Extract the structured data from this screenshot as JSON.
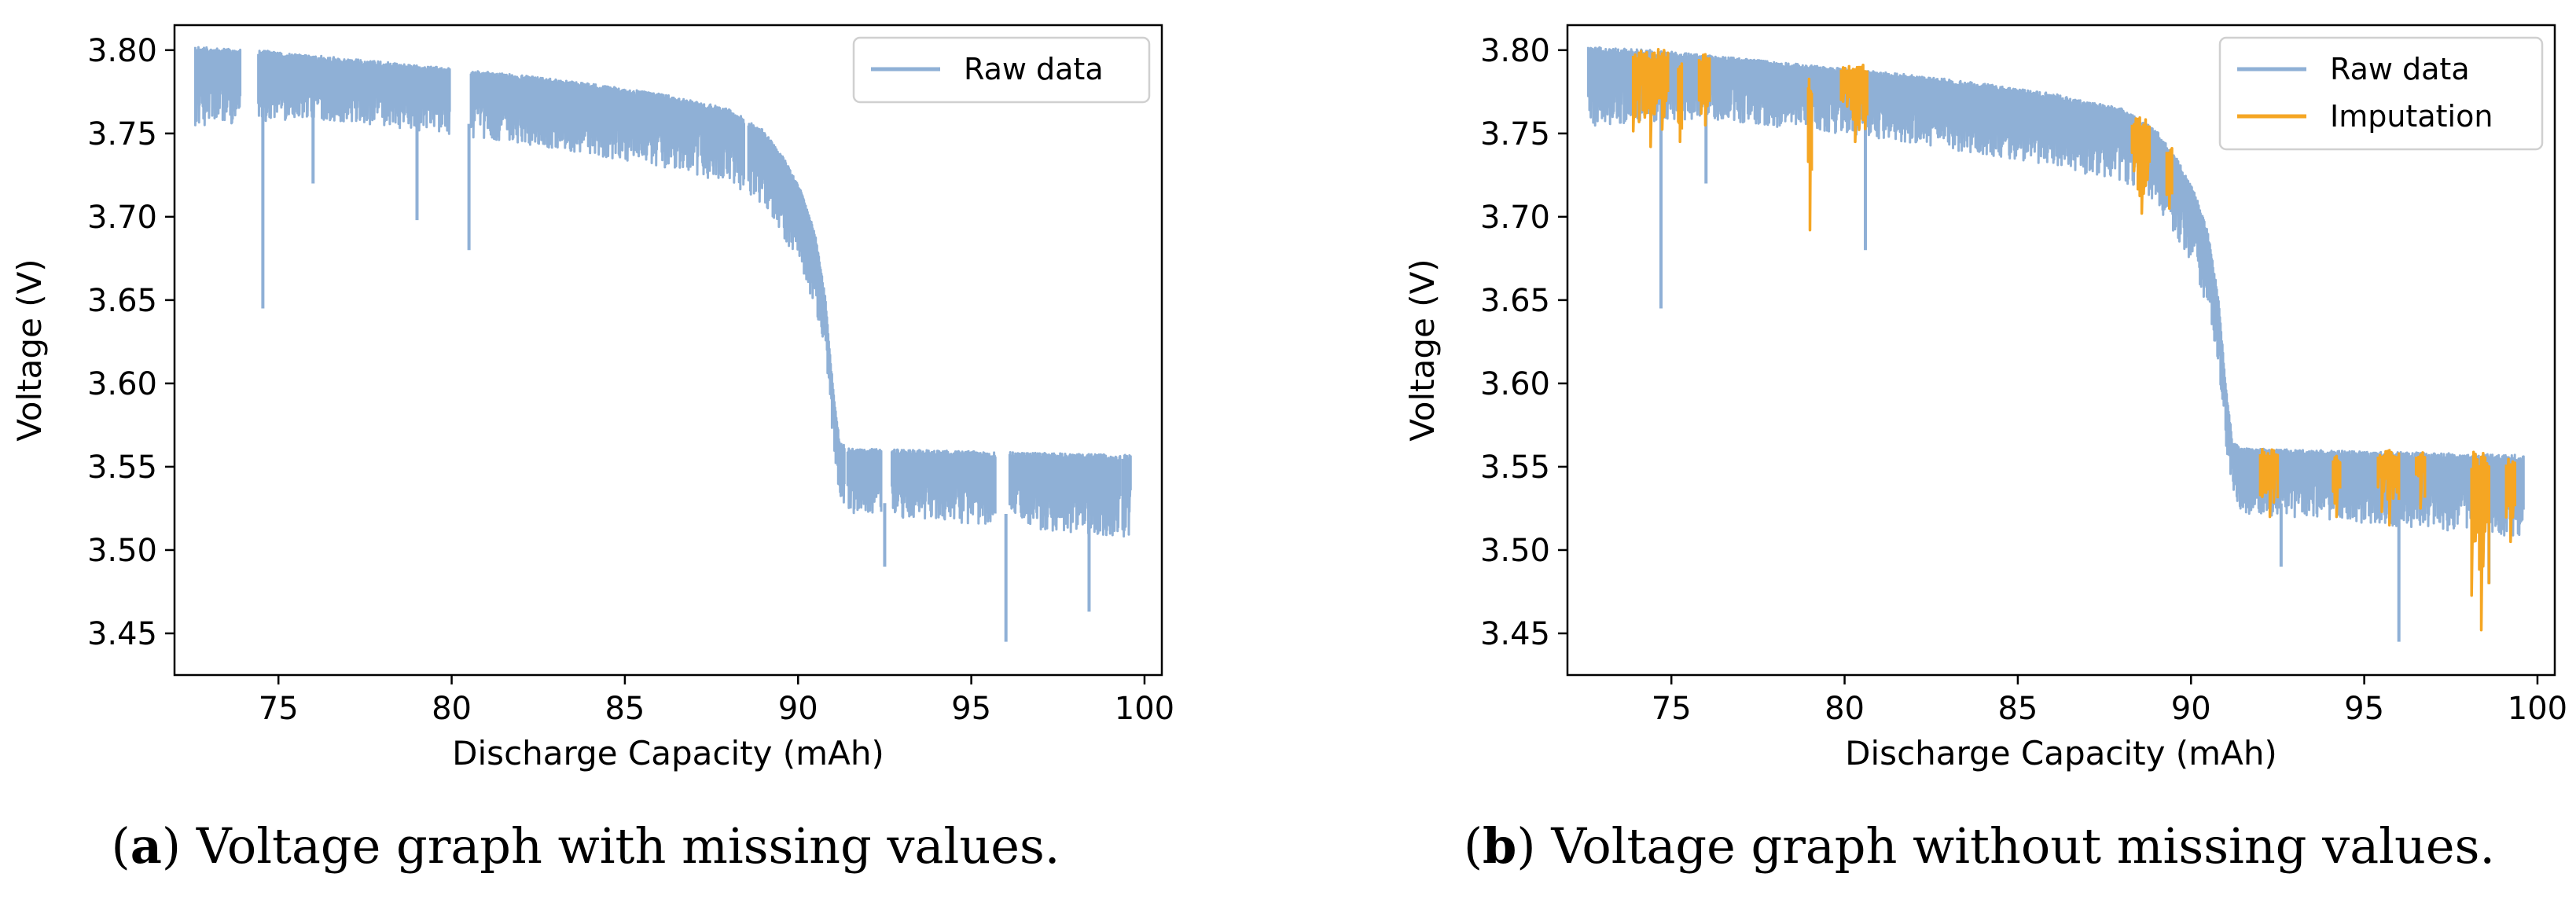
{
  "chart_data": [
    {
      "type": "line",
      "xlabel": "Discharge Capacity (mAh)",
      "ylabel": "Voltage (V)",
      "xlim": [
        72.0,
        100.5
      ],
      "ylim": [
        3.425,
        3.815
      ],
      "xticks": [
        75,
        80,
        85,
        90,
        95,
        100
      ],
      "yticks": [
        3.45,
        3.5,
        3.55,
        3.6,
        3.65,
        3.7,
        3.75,
        3.8
      ],
      "xtick_labels": [
        "75",
        "80",
        "85",
        "90",
        "95",
        "100"
      ],
      "ytick_labels": [
        "3.45",
        "3.50",
        "3.55",
        "3.60",
        "3.65",
        "3.70",
        "3.75",
        "3.80"
      ],
      "grid": false,
      "legend_position": "top-right",
      "caption_letter": "a",
      "caption_text": "Voltage graph with missing values.",
      "series": [
        {
          "name": "Raw data",
          "color": "#8fb0d6",
          "upper_envelope": {
            "x": [
              72.6,
              74.5,
              76,
              78,
              80,
              82,
              84,
              86,
              88,
              89,
              89.6,
              90.1,
              90.5,
              90.8,
              91.0,
              91.2,
              91.5,
              99.6
            ],
            "y": [
              3.802,
              3.8,
              3.797,
              3.793,
              3.789,
              3.785,
              3.78,
              3.774,
              3.765,
              3.752,
              3.735,
              3.715,
              3.69,
              3.65,
              3.6,
              3.565,
              3.561,
              3.557
            ]
          },
          "lower_envelope": {
            "x": [
              72.6,
              74.5,
              76,
              78,
              80,
              82,
              84,
              86,
              88,
              89,
              89.6,
              90.1,
              90.5,
              90.8,
              91.0,
              91.2,
              91.5,
              99.6
            ],
            "y": [
              3.752,
              3.755,
              3.757,
              3.752,
              3.747,
              3.742,
              3.735,
              3.728,
              3.718,
              3.705,
              3.685,
              3.665,
              3.64,
              3.61,
              3.56,
              3.53,
              3.52,
              3.505
            ]
          },
          "gaps": [
            [
              73.9,
              74.4
            ],
            [
              79.95,
              80.55
            ],
            [
              88.45,
              88.55
            ],
            [
              91.35,
              91.42
            ],
            [
              92.4,
              92.7
            ],
            [
              95.7,
              96.1
            ],
            [
              99.3,
              99.35
            ]
          ],
          "spikes": [
            {
              "x": 74.55,
              "y": 3.645
            },
            {
              "x": 76.0,
              "y": 3.72
            },
            {
              "x": 79.0,
              "y": 3.698
            },
            {
              "x": 80.5,
              "y": 3.68
            },
            {
              "x": 92.5,
              "y": 3.49
            },
            {
              "x": 96.0,
              "y": 3.445
            },
            {
              "x": 98.4,
              "y": 3.463
            }
          ]
        }
      ]
    },
    {
      "type": "line",
      "xlabel": "Discharge Capacity (mAh)",
      "ylabel": "Voltage (V)",
      "xlim": [
        72.0,
        100.5
      ],
      "ylim": [
        3.425,
        3.815
      ],
      "xticks": [
        75,
        80,
        85,
        90,
        95,
        100
      ],
      "yticks": [
        3.45,
        3.5,
        3.55,
        3.6,
        3.65,
        3.7,
        3.75,
        3.8
      ],
      "xtick_labels": [
        "75",
        "80",
        "85",
        "90",
        "95",
        "100"
      ],
      "ytick_labels": [
        "3.45",
        "3.50",
        "3.55",
        "3.60",
        "3.65",
        "3.70",
        "3.75",
        "3.80"
      ],
      "grid": false,
      "legend_position": "top-right",
      "caption_letter": "b",
      "caption_text": "Voltage graph without missing values.",
      "series": [
        {
          "name": "Raw data",
          "color": "#8fb0d6",
          "upper_envelope": {
            "x": [
              72.6,
              74.5,
              76,
              78,
              80,
              82,
              84,
              86,
              88,
              89,
              89.6,
              90.1,
              90.5,
              90.8,
              91.0,
              91.2,
              91.5,
              99.6
            ],
            "y": [
              3.802,
              3.8,
              3.797,
              3.793,
              3.789,
              3.785,
              3.78,
              3.774,
              3.765,
              3.752,
              3.735,
              3.715,
              3.69,
              3.65,
              3.6,
              3.565,
              3.561,
              3.557
            ]
          },
          "lower_envelope": {
            "x": [
              72.6,
              74.5,
              76,
              78,
              80,
              82,
              84,
              86,
              88,
              89,
              89.6,
              90.1,
              90.5,
              90.8,
              91.0,
              91.2,
              91.5,
              99.6
            ],
            "y": [
              3.752,
              3.755,
              3.757,
              3.752,
              3.747,
              3.742,
              3.735,
              3.728,
              3.718,
              3.705,
              3.685,
              3.665,
              3.64,
              3.61,
              3.56,
              3.53,
              3.52,
              3.505
            ]
          },
          "spikes": [
            {
              "x": 74.7,
              "y": 3.645
            },
            {
              "x": 76.0,
              "y": 3.72
            },
            {
              "x": 80.6,
              "y": 3.68
            },
            {
              "x": 92.6,
              "y": 3.49
            },
            {
              "x": 96.0,
              "y": 3.445
            },
            {
              "x": 98.6,
              "y": 3.48
            }
          ]
        },
        {
          "name": "Imputation",
          "color": "#f5a623",
          "segments": [
            {
              "x0": 73.9,
              "x1": 74.9,
              "ymin": 3.742,
              "ymax": 3.801
            },
            {
              "x0": 75.2,
              "x1": 75.3,
              "ymin": 3.745,
              "ymax": 3.793
            },
            {
              "x0": 75.8,
              "x1": 76.1,
              "ymin": 3.755,
              "ymax": 3.798
            },
            {
              "x0": 78.95,
              "x1": 79.05,
              "ymin": 3.692,
              "ymax": 3.785
            },
            {
              "x0": 79.9,
              "x1": 80.65,
              "ymin": 3.745,
              "ymax": 3.792
            },
            {
              "x0": 88.3,
              "x1": 88.8,
              "ymin": 3.702,
              "ymax": 3.76
            },
            {
              "x0": 89.3,
              "x1": 89.45,
              "ymin": 3.705,
              "ymax": 3.742
            },
            {
              "x0": 92.0,
              "x1": 92.5,
              "ymin": 3.52,
              "ymax": 3.561
            },
            {
              "x0": 94.1,
              "x1": 94.3,
              "ymin": 3.52,
              "ymax": 3.557
            },
            {
              "x0": 95.4,
              "x1": 96.0,
              "ymin": 3.515,
              "ymax": 3.56
            },
            {
              "x0": 96.5,
              "x1": 96.75,
              "ymin": 3.525,
              "ymax": 3.559
            },
            {
              "x0": 98.1,
              "x1": 98.6,
              "ymin": 3.452,
              "ymax": 3.559
            },
            {
              "x0": 99.1,
              "x1": 99.35,
              "ymin": 3.505,
              "ymax": 3.556
            }
          ]
        }
      ]
    }
  ]
}
